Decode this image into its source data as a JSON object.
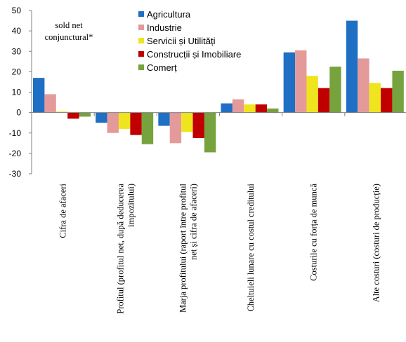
{
  "chart_data": {
    "type": "bar",
    "annotation": [
      "sold net",
      "conjunctural*"
    ],
    "categories": [
      [
        "Cifra de afaceri"
      ],
      [
        "Profitul (profitul net, după deducerea",
        "impozitului)"
      ],
      [
        "Marja profitului (raport între profitul",
        "net și cifra de afaceri)"
      ],
      [
        "Cheltuieli lunare cu costul creditului"
      ],
      [
        "Costurile cu forța de muncă"
      ],
      [
        "Alte costuri (costuri de producție)"
      ]
    ],
    "series": [
      {
        "name": "Agricultura",
        "color": "#1f6fc5",
        "values": [
          17,
          -5,
          -6.5,
          4.5,
          29.5,
          45
        ]
      },
      {
        "name": "Industrie",
        "color": "#e59a9a",
        "values": [
          9,
          -10,
          -15,
          6.5,
          30.5,
          26.5
        ]
      },
      {
        "name": "Servicii și Utilități",
        "color": "#efe51f",
        "values": [
          0.5,
          -8,
          -9.5,
          4,
          18,
          14.5
        ]
      },
      {
        "name": "Construcții și Imobiliare",
        "color": "#c00000",
        "values": [
          -3,
          -11,
          -12.5,
          4,
          12,
          12
        ]
      },
      {
        "name": "Comerț",
        "color": "#76a33e",
        "values": [
          -2,
          -15.5,
          -19.5,
          2,
          22.5,
          20.5
        ]
      }
    ],
    "yticks": [
      50,
      40,
      30,
      20,
      10,
      0,
      -10,
      -20,
      -30
    ],
    "ylim": [
      -30,
      50
    ],
    "grid": false,
    "legend": "top-center"
  }
}
